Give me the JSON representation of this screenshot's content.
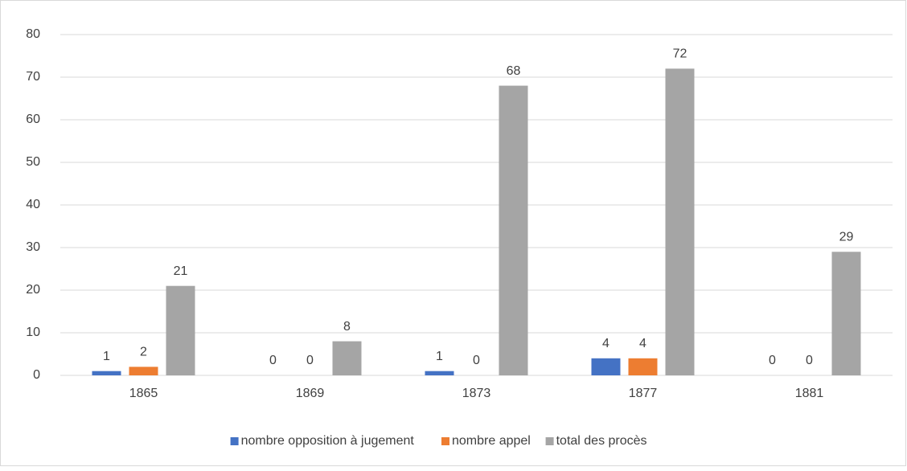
{
  "chart_data": {
    "type": "bar",
    "categories": [
      "1865",
      "1869",
      "1873",
      "1877",
      "1881"
    ],
    "series": [
      {
        "name": "nombre opposition à jugement",
        "color": "#4472c4",
        "values": [
          1,
          0,
          1,
          4,
          0
        ]
      },
      {
        "name": "nombre appel",
        "color": "#ed7d31",
        "values": [
          2,
          0,
          0,
          4,
          0
        ]
      },
      {
        "name": "total des procès",
        "color": "#a5a5a5",
        "values": [
          21,
          8,
          68,
          72,
          29
        ]
      }
    ],
    "ylim": [
      0,
      80
    ],
    "yticks": [
      0,
      10,
      20,
      30,
      40,
      50,
      60,
      70,
      80
    ],
    "grid": true,
    "legend": "bottom"
  }
}
